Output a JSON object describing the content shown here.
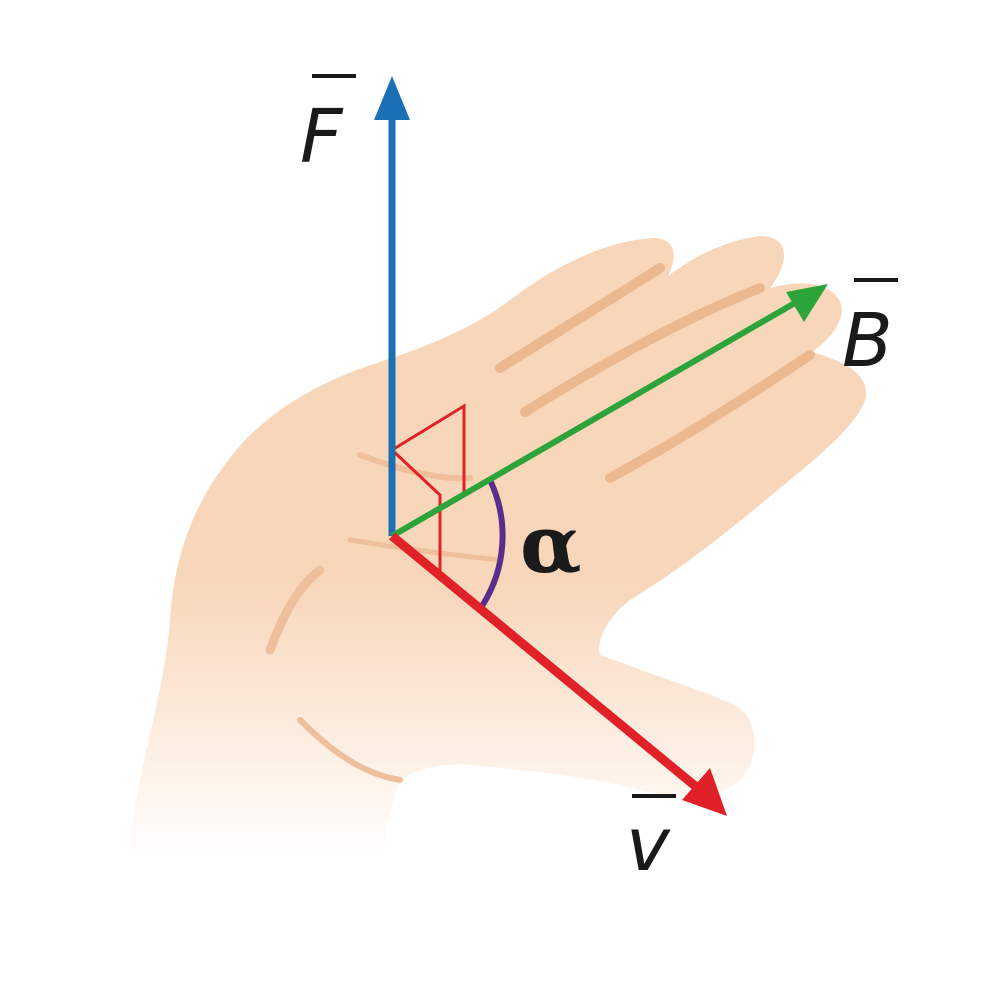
{
  "diagram": {
    "labels": {
      "force": "F",
      "field": "B",
      "velocity": "v",
      "angle": "α"
    },
    "colors": {
      "force_vector": "#1a6fb5",
      "field_vector": "#2ca43a",
      "velocity_vector": "#e02128",
      "right_angle_marks": "#e02128",
      "angle_arc": "#5b2e8c",
      "skin": "#f7d3b5",
      "skin_shadow": "#ecb88f"
    }
  }
}
